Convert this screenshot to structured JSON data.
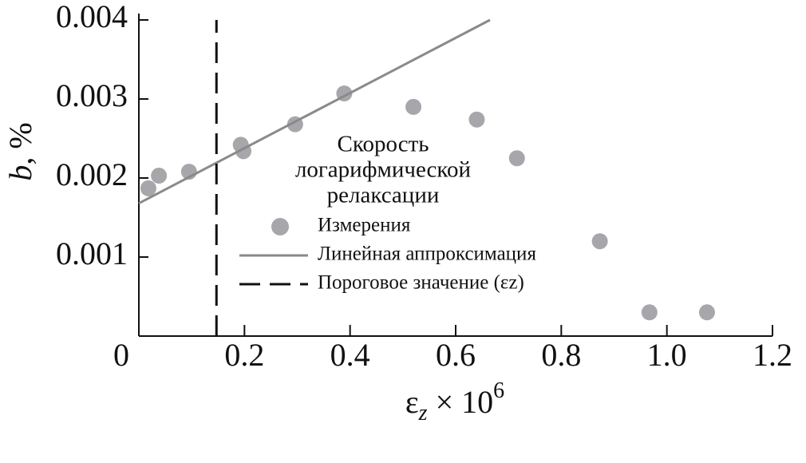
{
  "chart_data": {
    "type": "scatter",
    "xlabel": {
      "symbol": "ε",
      "subscript": "z",
      "text": " × 10",
      "superscript": "6"
    },
    "ylabel": {
      "symbol": "b",
      "text": ", %"
    },
    "legend_title": [
      "Скорость",
      "логарифмической",
      "релаксации"
    ],
    "xlim": [
      0,
      1.2
    ],
    "ylim": [
      0,
      0.004
    ],
    "xticks": [
      0,
      0.2,
      0.4,
      0.6,
      0.8,
      {
        "value": 1,
        "label": "1.0"
      },
      1.2
    ],
    "yticks": [
      0.001,
      0.002,
      0.003,
      0.004
    ],
    "series": [
      {
        "name": "Измерения",
        "type": "scatter",
        "color": "#a7a7ab",
        "x": [
          0.018,
          0.038,
          0.095,
          0.193,
          0.198,
          0.296,
          0.389,
          0.52,
          0.64,
          0.716,
          0.873,
          0.967,
          1.076
        ],
        "values": [
          0.00187,
          0.00203,
          0.00208,
          0.00242,
          0.00234,
          0.00268,
          0.00307,
          0.0029,
          0.00274,
          0.00225,
          0.0012,
          0.0003,
          0.0003
        ]
      },
      {
        "name": "Линейная аппроксимация",
        "type": "line",
        "color": "#8a8a8a",
        "x": [
          0,
          0.665
        ],
        "values": [
          0.00168,
          0.004
        ]
      },
      {
        "name": "Пороговое значение (εz)",
        "type": "line",
        "dash": true,
        "color": "#111111",
        "x": [
          0.147,
          0.147
        ],
        "values": [
          0,
          0.004
        ]
      }
    ]
  }
}
